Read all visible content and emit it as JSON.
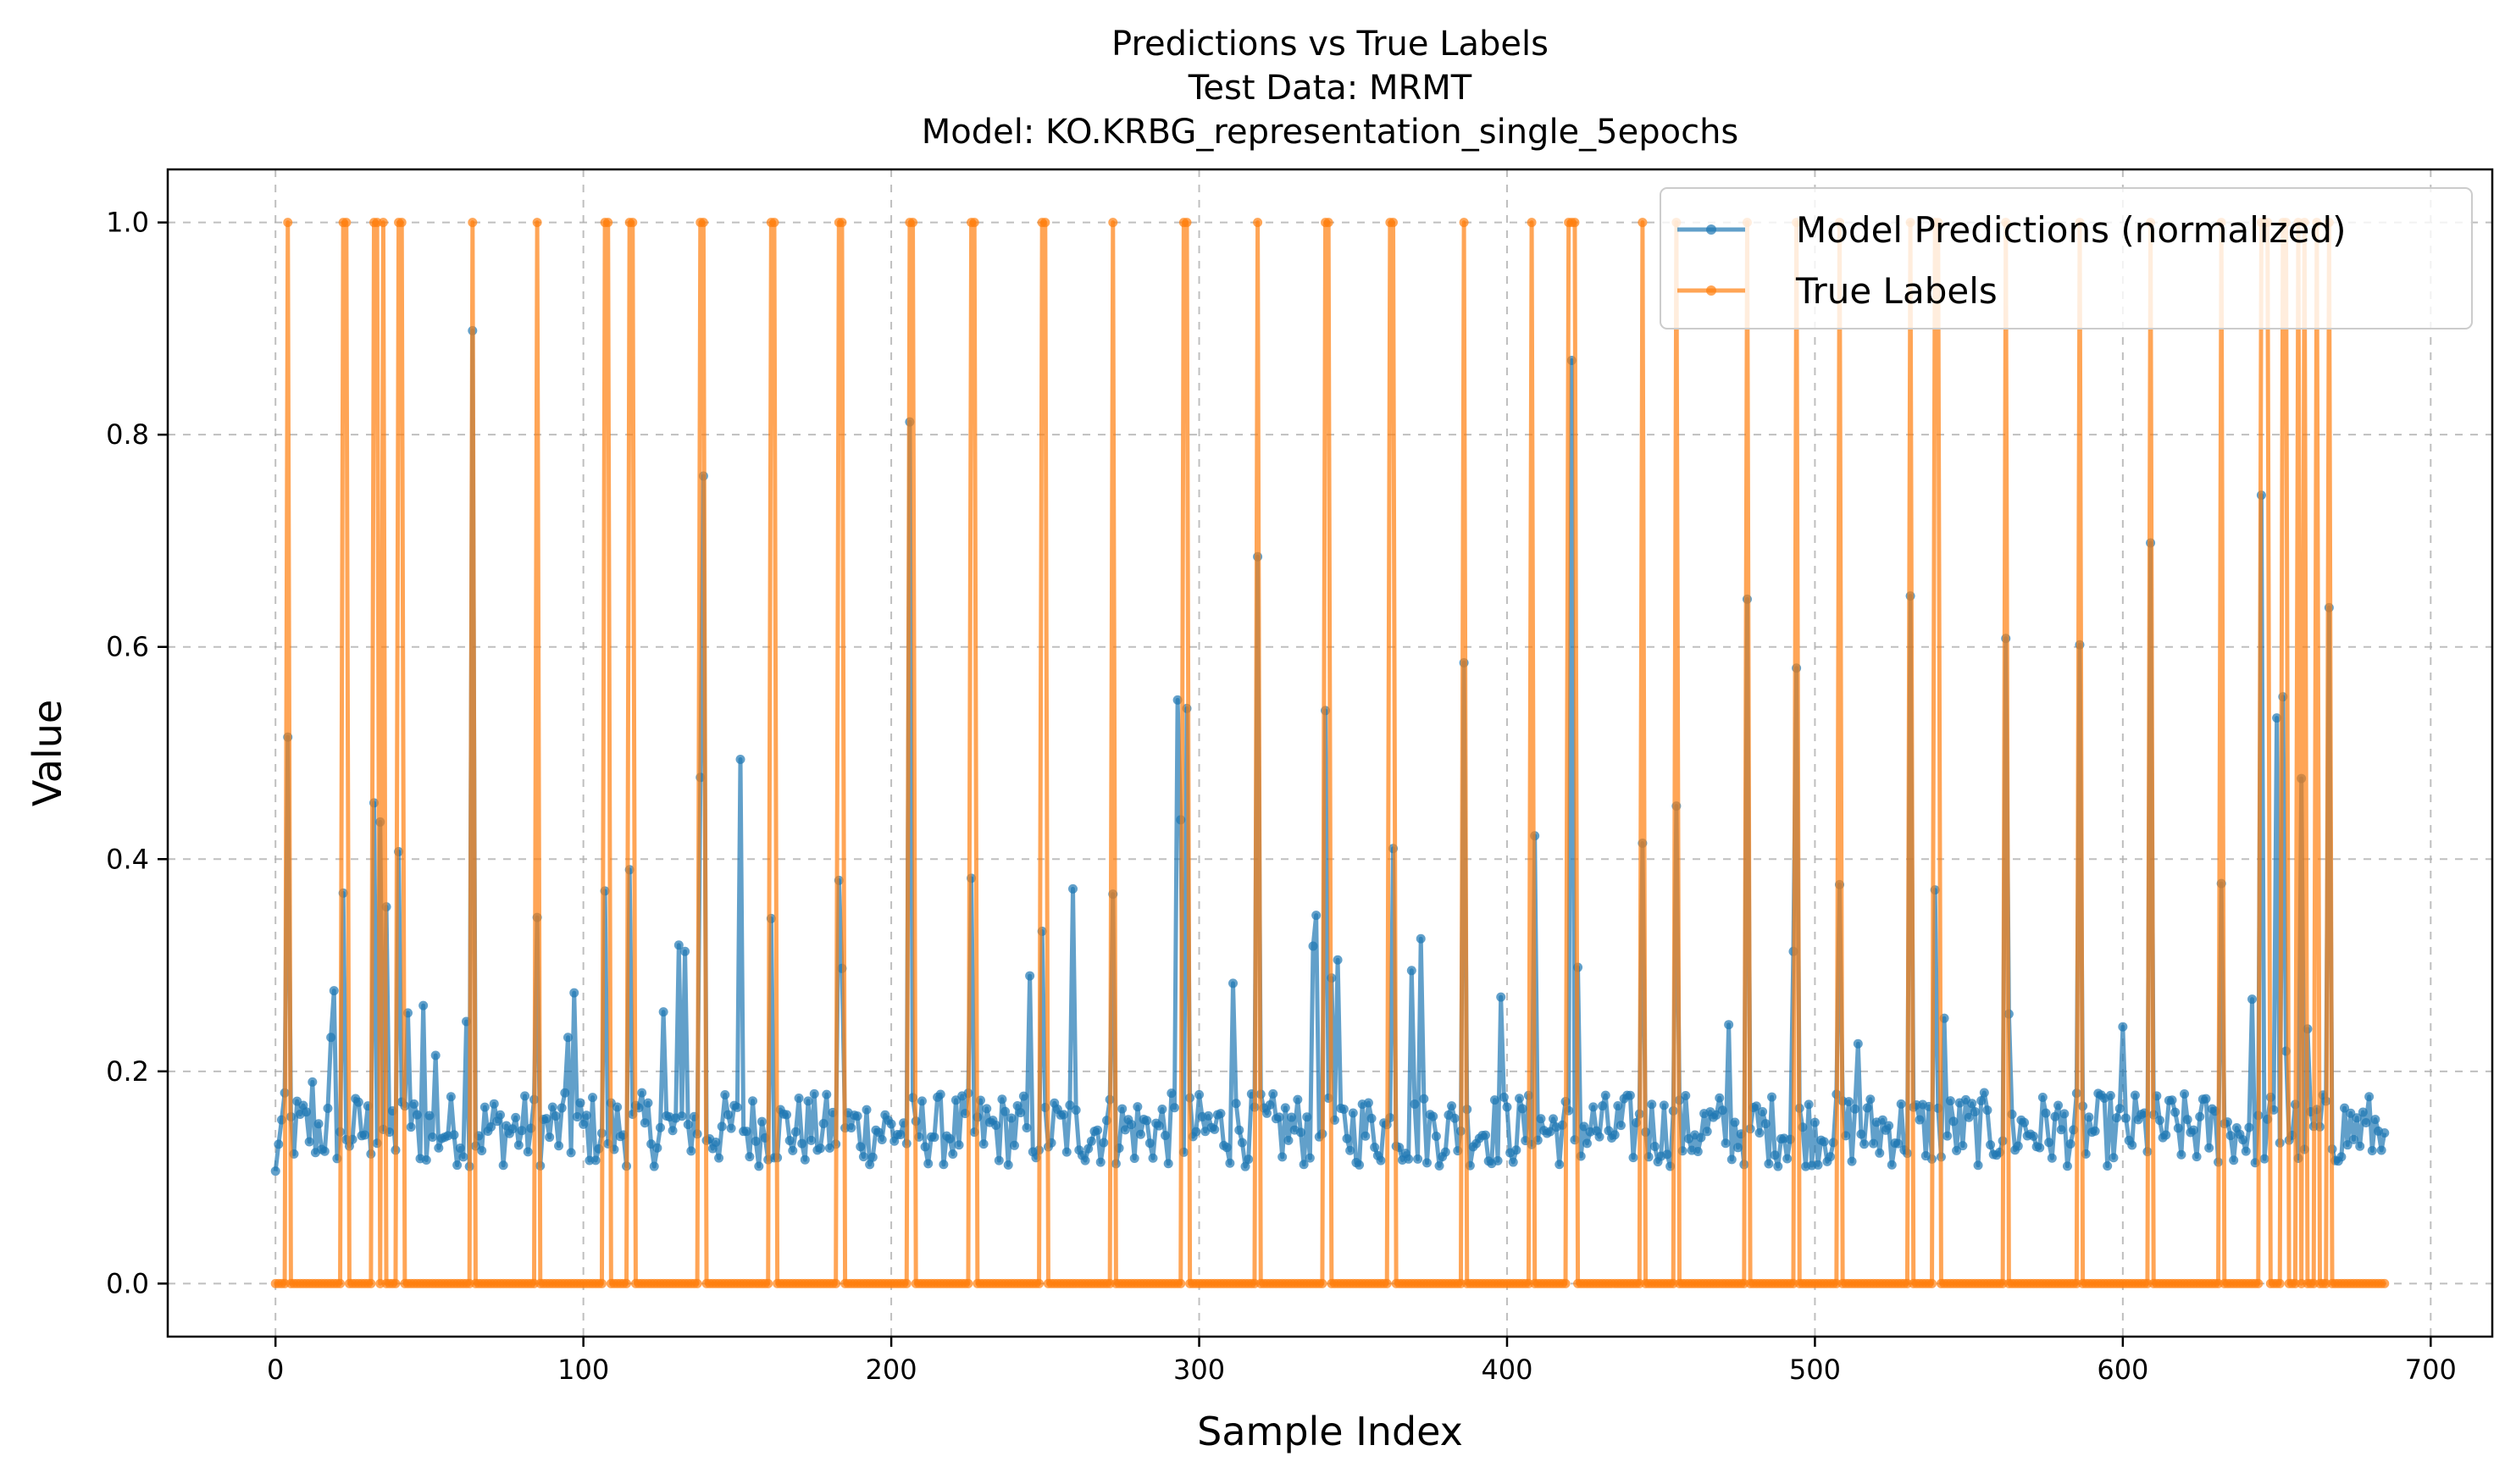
{
  "chart_data": {
    "type": "line",
    "title_lines": [
      "Predictions vs True Labels",
      "Test Data: MRMT",
      "Model: KO.KRBG_representation_single_5epochs"
    ],
    "xlabel": "Sample Index",
    "ylabel": "Value",
    "xlim": [
      -35,
      720
    ],
    "ylim": [
      -0.05,
      1.05
    ],
    "xticks": [
      0,
      100,
      200,
      300,
      400,
      500,
      600,
      700
    ],
    "yticks": [
      0.0,
      0.2,
      0.4,
      0.6,
      0.8,
      1.0
    ],
    "xtick_labels": [
      "0",
      "100",
      "200",
      "300",
      "400",
      "500",
      "600",
      "700"
    ],
    "ytick_labels": [
      "0.0",
      "0.2",
      "0.4",
      "0.6",
      "0.8",
      "1.0"
    ],
    "grid": true,
    "legend_position": "top-right",
    "n_samples": 686,
    "series": [
      {
        "name": "Model Predictions (normalized)",
        "color": "#1f77b4",
        "baseline": [
          0.11,
          0.18
        ],
        "peaks": [
          [
            0,
            0.106
          ],
          [
            4,
            0.515
          ],
          [
            12,
            0.19
          ],
          [
            18,
            0.232
          ],
          [
            19,
            0.276
          ],
          [
            22,
            0.368
          ],
          [
            32,
            0.453
          ],
          [
            34,
            0.435
          ],
          [
            36,
            0.355
          ],
          [
            40,
            0.407
          ],
          [
            43,
            0.255
          ],
          [
            48,
            0.262
          ],
          [
            52,
            0.215
          ],
          [
            62,
            0.247
          ],
          [
            64,
            0.898
          ],
          [
            85,
            0.345
          ],
          [
            95,
            0.232
          ],
          [
            97,
            0.274
          ],
          [
            107,
            0.37
          ],
          [
            115,
            0.39
          ],
          [
            126,
            0.256
          ],
          [
            131,
            0.319
          ],
          [
            133,
            0.313
          ],
          [
            138,
            0.477
          ],
          [
            139,
            0.761
          ],
          [
            151,
            0.494
          ],
          [
            161,
            0.344
          ],
          [
            183,
            0.38
          ],
          [
            184,
            0.297
          ],
          [
            206,
            0.812
          ],
          [
            226,
            0.382
          ],
          [
            245,
            0.29
          ],
          [
            249,
            0.332
          ],
          [
            259,
            0.372
          ],
          [
            272,
            0.367
          ],
          [
            293,
            0.55
          ],
          [
            294,
            0.437
          ],
          [
            296,
            0.542
          ],
          [
            311,
            0.283
          ],
          [
            319,
            0.685
          ],
          [
            337,
            0.318
          ],
          [
            338,
            0.347
          ],
          [
            341,
            0.54
          ],
          [
            343,
            0.288
          ],
          [
            345,
            0.305
          ],
          [
            363,
            0.41
          ],
          [
            369,
            0.295
          ],
          [
            372,
            0.325
          ],
          [
            386,
            0.585
          ],
          [
            398,
            0.27
          ],
          [
            409,
            0.422
          ],
          [
            421,
            0.87
          ],
          [
            423,
            0.298
          ],
          [
            444,
            0.415
          ],
          [
            455,
            0.45
          ],
          [
            472,
            0.244
          ],
          [
            478,
            0.645
          ],
          [
            493,
            0.313
          ],
          [
            494,
            0.58
          ],
          [
            508,
            0.376
          ],
          [
            514,
            0.226
          ],
          [
            531,
            0.648
          ],
          [
            539,
            0.371
          ],
          [
            542,
            0.25
          ],
          [
            562,
            0.608
          ],
          [
            563,
            0.254
          ],
          [
            586,
            0.602
          ],
          [
            600,
            0.242
          ],
          [
            609,
            0.698
          ],
          [
            632,
            0.377
          ],
          [
            642,
            0.268
          ],
          [
            645,
            0.743
          ],
          [
            650,
            0.533
          ],
          [
            652,
            0.553
          ],
          [
            653,
            0.219
          ],
          [
            658,
            0.476
          ],
          [
            660,
            0.24
          ],
          [
            667,
            0.637
          ],
          [
            685,
            0.142
          ]
        ]
      },
      {
        "name": "True Labels",
        "color": "#ff7f0e",
        "positive_indices": [
          4,
          22,
          23,
          32,
          33,
          35,
          40,
          41,
          64,
          85,
          107,
          108,
          115,
          116,
          138,
          139,
          161,
          162,
          183,
          184,
          206,
          207,
          226,
          227,
          249,
          250,
          272,
          295,
          296,
          319,
          341,
          342,
          362,
          363,
          386,
          408,
          420,
          421,
          422,
          444,
          455,
          478,
          494,
          508,
          531,
          539,
          540,
          562,
          586,
          609,
          632,
          645,
          646,
          647,
          652,
          653,
          657,
          659,
          663,
          667
        ],
        "other_values": 0.0
      }
    ]
  }
}
